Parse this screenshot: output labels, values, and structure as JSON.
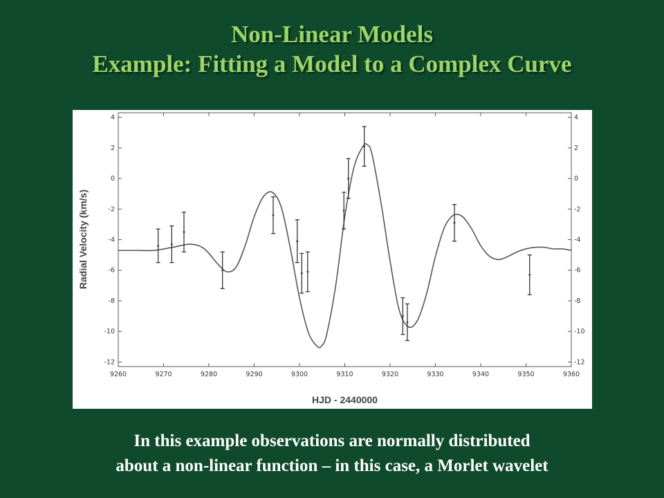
{
  "slide": {
    "title_line1": "Non-Linear Models",
    "title_line2": "Example: Fitting a Model to a Complex Curve",
    "caption_line1": "In this example observations are normally distributed",
    "caption_line2": "about a non-linear function – in this case, a Morlet wavelet",
    "background_color": "#0f4a2c",
    "title_color": "#9bd46a",
    "caption_color": "#ffffff"
  },
  "chart_data": {
    "type": "scatter",
    "xlabel": "HJD - 2440000",
    "ylabel": "Radial Velocity (km/s)",
    "xlim": [
      9260,
      9360
    ],
    "ylim": [
      -12.3,
      4.3
    ],
    "x_ticks": [
      9260,
      9270,
      9280,
      9290,
      9300,
      9310,
      9320,
      9330,
      9340,
      9350,
      9360
    ],
    "y_ticks": [
      4,
      2,
      0,
      -2,
      -4,
      -6,
      -8,
      -10,
      -12
    ],
    "right_axis_ticks": true,
    "grid": false,
    "observations": {
      "x": [
        9268.8,
        9271.8,
        9274.5,
        9283.0,
        9294.2,
        9299.5,
        9300.5,
        9301.8,
        9309.8,
        9310.8,
        9314.3,
        9322.8,
        9323.8,
        9334.2,
        9350.8
      ],
      "y": [
        -4.4,
        -4.3,
        -3.5,
        -6.0,
        -2.4,
        -4.1,
        -6.2,
        -6.1,
        -2.1,
        0.0,
        2.1,
        -9.0,
        -9.4,
        -2.9,
        -6.3
      ],
      "err": [
        1.1,
        1.2,
        1.3,
        1.2,
        1.2,
        1.4,
        1.3,
        1.3,
        1.2,
        1.3,
        1.3,
        1.2,
        1.2,
        1.2,
        1.3
      ]
    },
    "fit_curve": {
      "name": "Morlet wavelet",
      "x": [
        9260,
        9264,
        9268,
        9272,
        9276,
        9279,
        9282,
        9284,
        9286,
        9288,
        9290,
        9292,
        9294,
        9296,
        9298,
        9300,
        9302,
        9304,
        9305,
        9306,
        9308,
        9310,
        9312,
        9314,
        9315,
        9316,
        9318,
        9320,
        9322,
        9324,
        9326,
        9328,
        9330,
        9332,
        9334,
        9336,
        9338,
        9340,
        9342,
        9344,
        9346,
        9348,
        9350,
        9352,
        9354,
        9356,
        9358,
        9360
      ],
      "y": [
        -4.7,
        -4.7,
        -4.7,
        -4.5,
        -4.3,
        -4.6,
        -5.6,
        -6.1,
        -5.8,
        -4.4,
        -2.5,
        -1.2,
        -0.9,
        -1.9,
        -4.6,
        -7.8,
        -10.1,
        -11.0,
        -10.9,
        -10.2,
        -7.0,
        -2.5,
        0.7,
        2.1,
        2.2,
        1.6,
        -1.6,
        -5.4,
        -8.6,
        -9.7,
        -9.3,
        -7.6,
        -5.1,
        -3.2,
        -2.4,
        -2.5,
        -3.3,
        -4.4,
        -5.1,
        -5.3,
        -5.1,
        -4.8,
        -4.6,
        -4.5,
        -4.5,
        -4.6,
        -4.6,
        -4.7
      ]
    }
  }
}
